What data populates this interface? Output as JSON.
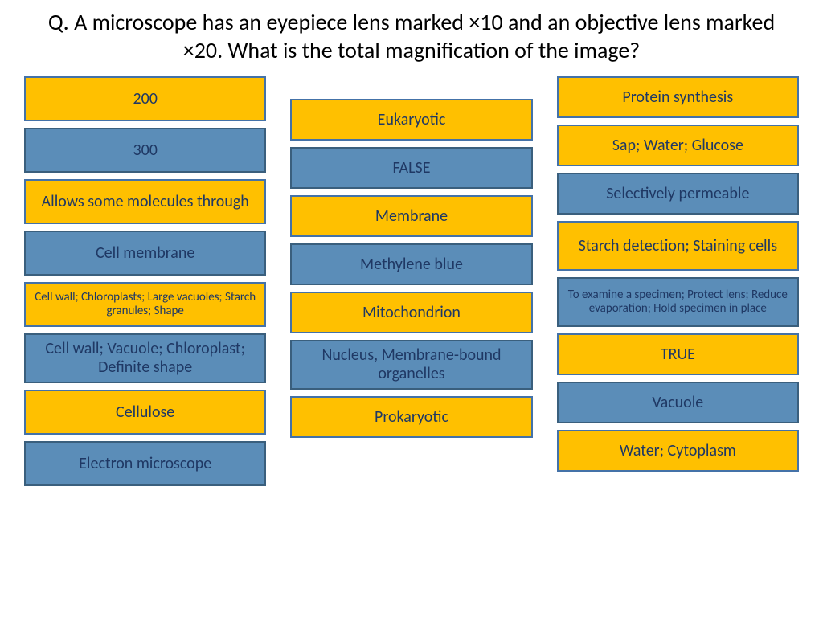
{
  "question": "Q. A microscope has an eyepiece lens marked ×10 and an objective lens marked ×20. What is the total magnification of the image?",
  "colors": {
    "yellow_bg": "#ffc000",
    "blue_bg": "#5b8db8",
    "border": "#4472a8",
    "text": "#1f3864",
    "page_bg": "#ffffff"
  },
  "typography": {
    "question_fontsize": 28,
    "card_fontsize": 20,
    "card_small_fontsize": 15,
    "font_family": "Calibri"
  },
  "layout": {
    "columns": 3,
    "card_gap": 8,
    "column_gap": 30,
    "card_min_height": 52,
    "border_width": 2
  },
  "columns": [
    {
      "items": [
        {
          "label": "200",
          "color": "yellow",
          "small": false
        },
        {
          "label": "300",
          "color": "blue",
          "small": false
        },
        {
          "label": "Allows some molecules through",
          "color": "yellow",
          "small": false,
          "tall": true
        },
        {
          "label": "Cell membrane",
          "color": "blue",
          "small": false
        },
        {
          "label": "Cell wall; Chloroplasts; Large vacuoles; Starch granules; Shape",
          "color": "yellow",
          "small": true,
          "tall": true
        },
        {
          "label": "Cell wall; Vacuole; Chloroplast; Definite shape",
          "color": "blue",
          "small": false,
          "tall": true
        },
        {
          "label": "Cellulose",
          "color": "yellow",
          "small": false
        },
        {
          "label": "Electron microscope",
          "color": "blue",
          "small": false
        }
      ]
    },
    {
      "items": [
        {
          "label": "Eukaryotic",
          "color": "yellow",
          "small": false
        },
        {
          "label": "FALSE",
          "color": "blue",
          "small": false
        },
        {
          "label": "Membrane",
          "color": "yellow",
          "small": false
        },
        {
          "label": "Methylene blue",
          "color": "blue",
          "small": false
        },
        {
          "label": "Mitochondrion",
          "color": "yellow",
          "small": false
        },
        {
          "label": "Nucleus, Membrane-bound organelles",
          "color": "blue",
          "small": false,
          "tall": true
        },
        {
          "label": "Prokaryotic",
          "color": "yellow",
          "small": false
        }
      ]
    },
    {
      "items": [
        {
          "label": "Protein synthesis",
          "color": "yellow",
          "small": false
        },
        {
          "label": "Sap; Water; Glucose",
          "color": "yellow",
          "small": false
        },
        {
          "label": "Selectively permeable",
          "color": "blue",
          "small": false
        },
        {
          "label": "Starch detection; Staining cells",
          "color": "yellow",
          "small": false,
          "tall": true
        },
        {
          "label": "To examine a specimen; Protect lens; Reduce evaporation; Hold specimen in place",
          "color": "blue",
          "small": true,
          "tall": true
        },
        {
          "label": "TRUE",
          "color": "yellow",
          "small": false
        },
        {
          "label": "Vacuole",
          "color": "blue",
          "small": false
        },
        {
          "label": "Water; Cytoplasm",
          "color": "yellow",
          "small": false
        }
      ]
    }
  ]
}
